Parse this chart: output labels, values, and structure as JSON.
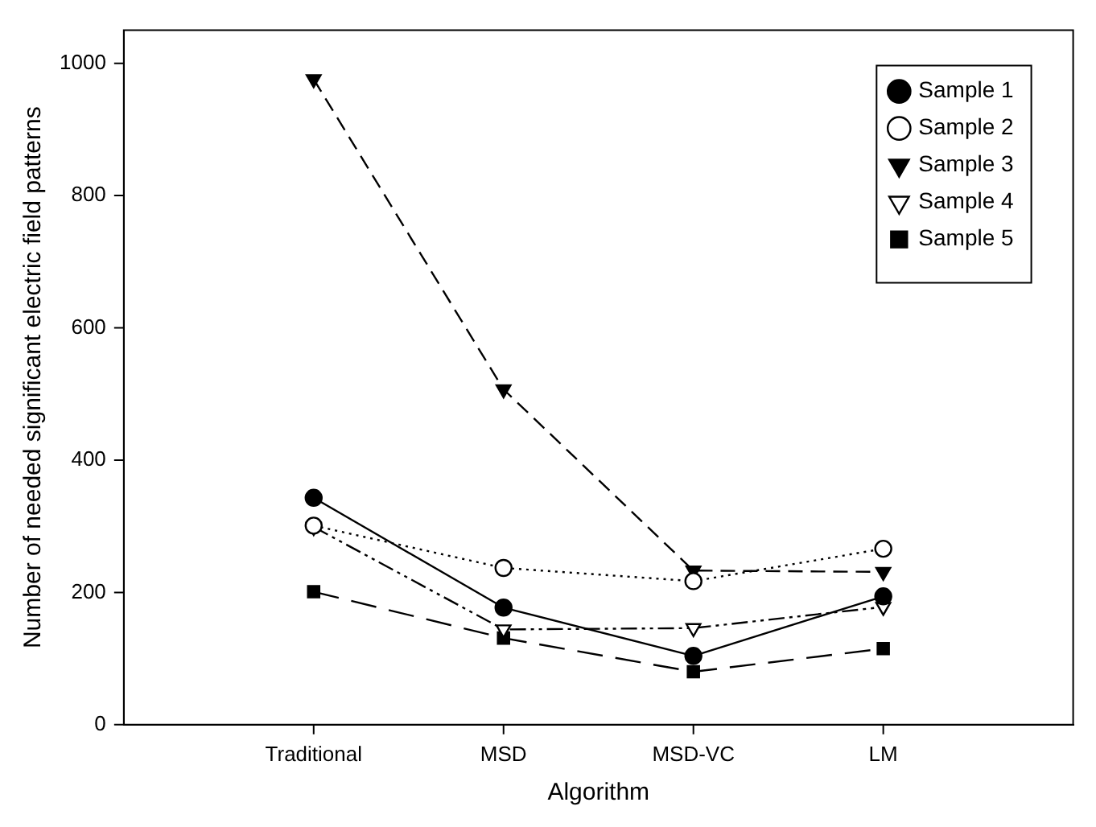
{
  "chart_data": {
    "type": "line",
    "xlabel": "Algorithm",
    "ylabel": "Number of needed significant electric field patterns",
    "categories": [
      "Traditional",
      "MSD",
      "MSD-VC",
      "LM"
    ],
    "ylim": [
      0,
      1050
    ],
    "yticks": [
      0,
      200,
      400,
      600,
      800,
      1000
    ],
    "grid": false,
    "legend": "top right",
    "series": [
      {
        "name": "Sample 1",
        "color": "#000000",
        "marker": "circle",
        "line_style": "solid",
        "values": [
          343,
          177,
          104,
          194
        ]
      },
      {
        "name": "Sample 2",
        "color": "#000000",
        "marker": "circle-open",
        "line_style": "dotted",
        "values": [
          301,
          237,
          217,
          266
        ]
      },
      {
        "name": "Sample 3",
        "color": "#000000",
        "marker": "triangle-down",
        "line_style": "dashed",
        "values": [
          976,
          507,
          233,
          231
        ]
      },
      {
        "name": "Sample 4",
        "color": "#000000",
        "marker": "triangle-down-open",
        "line_style": "dashdotdot",
        "values": [
          299,
          144,
          146,
          178
        ]
      },
      {
        "name": "Sample 5",
        "color": "#000000",
        "marker": "square",
        "line_style": "longdash",
        "values": [
          201,
          131,
          80,
          115
        ]
      }
    ]
  }
}
